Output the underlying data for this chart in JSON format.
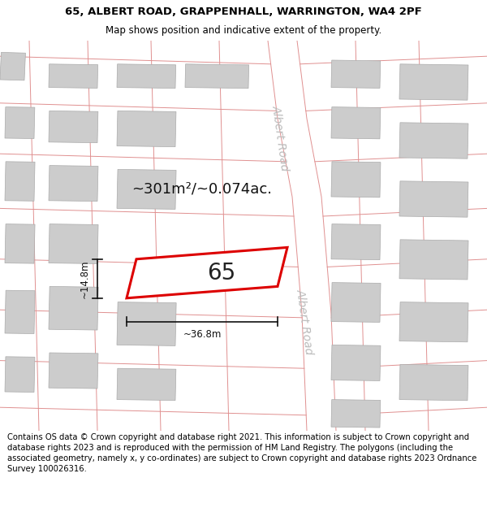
{
  "title_line1": "65, ALBERT ROAD, GRAPPENHALL, WARRINGTON, WA4 2PF",
  "title_line2": "Map shows position and indicative extent of the property.",
  "footer_text": "Contains OS data © Crown copyright and database right 2021. This information is subject to Crown copyright and database rights 2023 and is reproduced with the permission of HM Land Registry. The polygons (including the associated geometry, namely x, y co-ordinates) are subject to Crown copyright and database rights 2023 Ordnance Survey 100026316.",
  "area_label": "~301m²/~0.074ac.",
  "width_label": "~36.8m",
  "height_label": "~14.8m",
  "plot_number": "65",
  "bg_color": "#ffffff",
  "map_bg": "#f0f0f0",
  "road_color": "#ffffff",
  "building_color": "#cccccc",
  "road_line_color": "#e09090",
  "plot_fill": "#ffffff",
  "plot_edge_color": "#dd0000",
  "plot_edge_width": 2.2,
  "road_label_color": "#bbbbbb",
  "dim_color": "#111111",
  "title_fontsize": 9.5,
  "subtitle_fontsize": 8.5,
  "footer_fontsize": 7.2,
  "area_fontsize": 13,
  "number_fontsize": 20,
  "dim_fontsize": 8.5,
  "road_label_fontsize": 10
}
